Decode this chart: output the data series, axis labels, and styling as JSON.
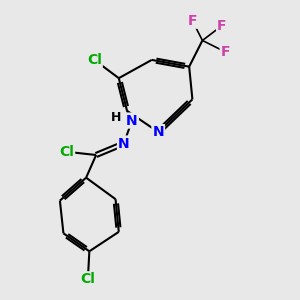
{
  "bg_color": "#e8e8e8",
  "bond_color": "#000000",
  "atom_colors": {
    "Cl_green": "#00aa00",
    "N_blue": "#0000ff",
    "F_pink": "#cc44aa"
  },
  "font_size": 10,
  "figsize": [
    3.0,
    3.0
  ],
  "dpi": 100,
  "xlim": [
    0,
    10
  ],
  "ylim": [
    0,
    10
  ]
}
